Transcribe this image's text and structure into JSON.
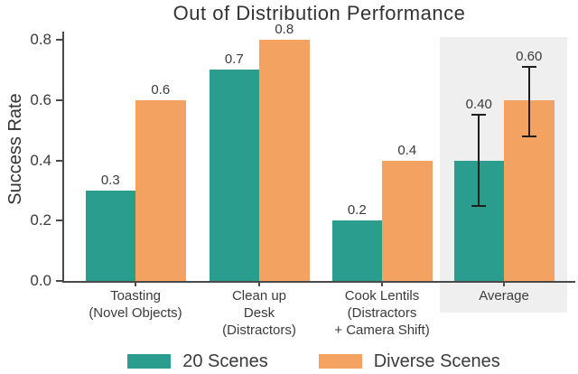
{
  "chart_data": {
    "type": "bar",
    "title": "Out of Distribution Performance",
    "ylabel": "Success Rate",
    "xlabel": "",
    "ylim": [
      0.0,
      0.84
    ],
    "grid": false,
    "yticks": [
      0.0,
      0.2,
      0.4,
      0.6,
      0.8
    ],
    "ytick_labels": [
      "0.0",
      "0.2",
      "0.4",
      "0.6",
      "0.8"
    ],
    "categories": [
      "Toasting\n(Novel Objects)",
      "Clean up\nDesk\n(Distractors)",
      "Cook Lentils\n(Distractors\n+ Camera Shift)",
      "Average"
    ],
    "series": [
      {
        "name": "20 Scenes",
        "color": "#2a9d8f",
        "values": [
          0.3,
          0.7,
          0.2,
          0.4
        ],
        "bar_labels": [
          "0.3",
          "0.7",
          "0.2",
          "0.40"
        ]
      },
      {
        "name": "Diverse Scenes",
        "color": "#f4a261",
        "values": [
          0.6,
          0.8,
          0.4,
          0.6
        ],
        "bar_labels": [
          "0.6",
          "0.8",
          "0.4",
          "0.60"
        ]
      }
    ],
    "error_bars": [
      {
        "category": "Average",
        "series": "20 Scenes",
        "low": 0.25,
        "high": 0.55
      },
      {
        "category": "Average",
        "series": "Diverse Scenes",
        "low": 0.48,
        "high": 0.71
      }
    ],
    "highlight_band": {
      "category": "Average",
      "color": "#efefef"
    },
    "legend": {
      "position": "bottom",
      "entries": [
        "20 Scenes",
        "Diverse Scenes"
      ]
    }
  }
}
